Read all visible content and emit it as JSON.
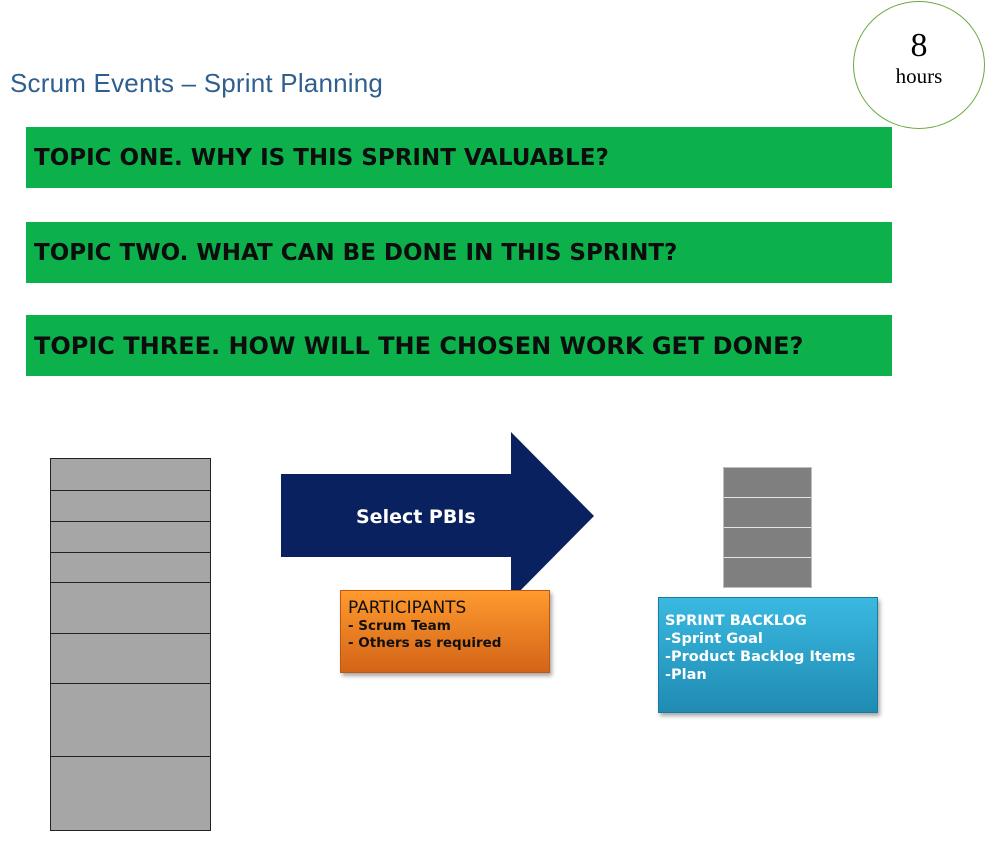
{
  "title": "Scrum Events – Sprint Planning",
  "duration": {
    "value": "8",
    "unit": "hours"
  },
  "topics": [
    "TOPIC ONE. WHY IS THIS SPRINT VALUABLE?",
    "TOPIC TWO. WHAT CAN BE DONE IN THIS SPRINT?",
    "TOPIC THREE. HOW WILL THE CHOSEN WORK GET DONE?"
  ],
  "arrow": {
    "label": "Select PBIs",
    "color": "#0a2160"
  },
  "participants": {
    "heading": "PARTICIPANTS",
    "items": [
      "- Scrum Team",
      "- Others as required"
    ]
  },
  "sprint_backlog": {
    "heading": "SPRINT BACKLOG",
    "items": [
      "-Sprint Goal",
      "-Product Backlog Items",
      "-Plan"
    ]
  },
  "colors": {
    "topic_bar": "#0cb14b",
    "title_text": "#2f5f8f",
    "circle_border": "#6aab3f",
    "participants_box": "#f2851f",
    "sprint_backlog_box": "#2ea6cf",
    "backlog_item": "#a6a6a6",
    "sprint_item": "#7f7f7f"
  }
}
